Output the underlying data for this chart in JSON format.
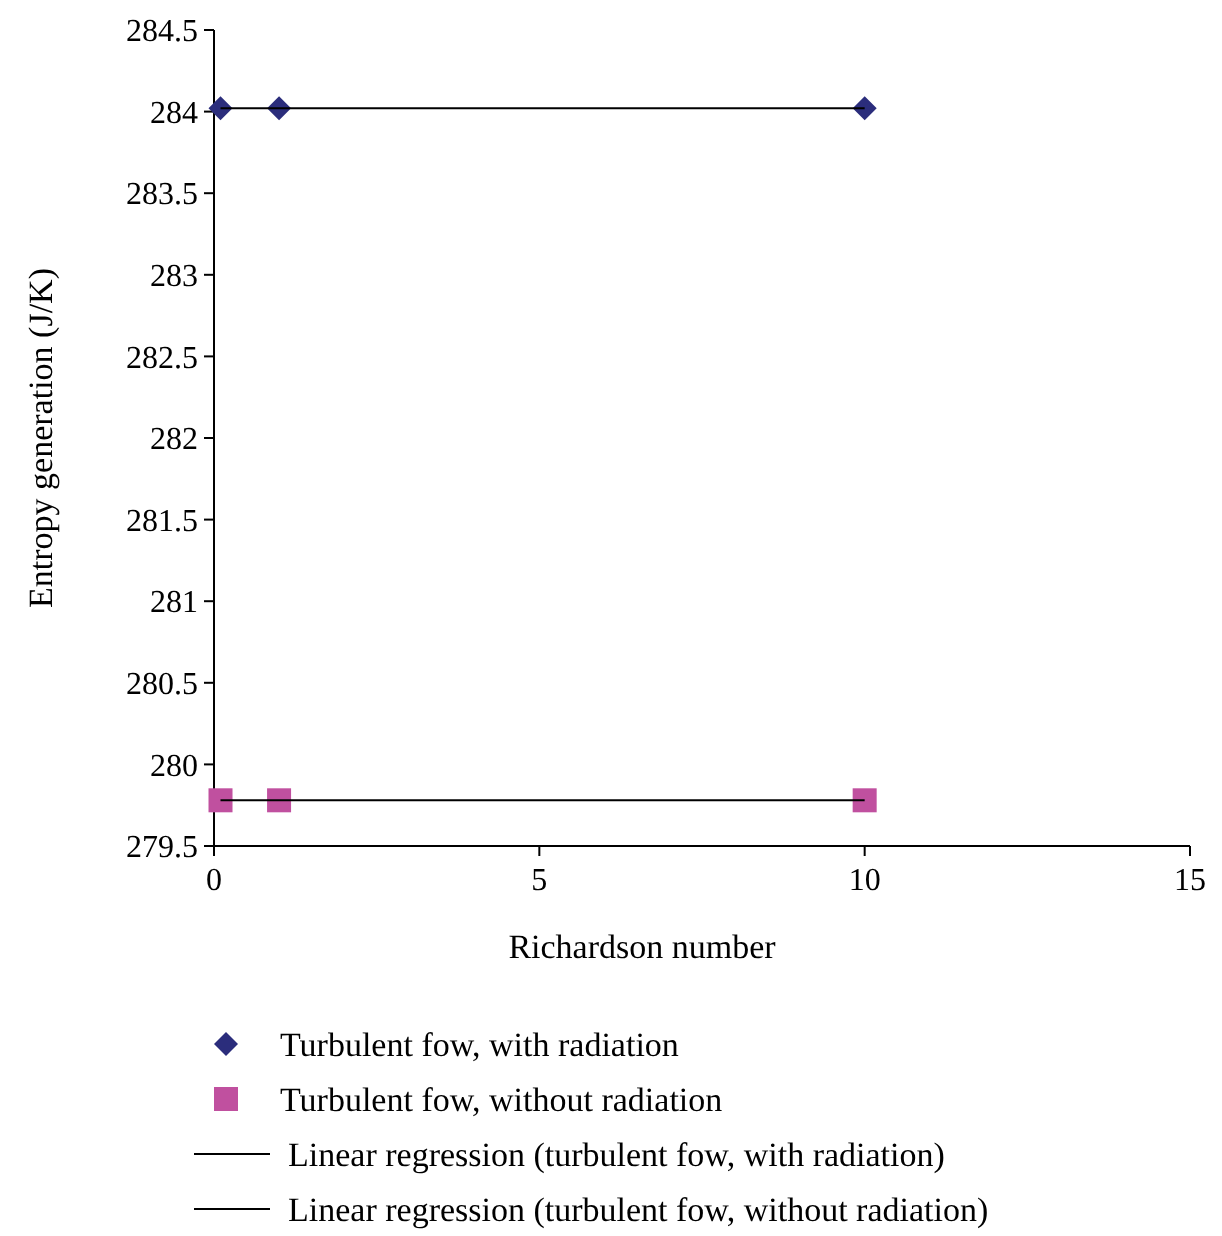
{
  "chart_data": {
    "type": "scatter",
    "xlabel": "Richardson number",
    "ylabel": "Entropy generation (J/K)",
    "x": [
      0.1,
      1,
      10
    ],
    "series": [
      {
        "name": "Turbulent fow, with radiation",
        "color": "#2b2d7c",
        "values": [
          284.02,
          284.02,
          284.02
        ],
        "marker": "diamond"
      },
      {
        "name": "Turbulent fow, without radiation",
        "color": "#c0509f",
        "values": [
          279.78,
          279.78,
          279.78
        ],
        "marker": "square"
      },
      {
        "name": "Linear regression  (turbulent fow, with radiation)",
        "type": "line",
        "color": "#000000",
        "values": [
          284.02,
          284.02,
          284.02
        ],
        "marker": "none"
      },
      {
        "name": "Linear regression  (turbulent fow, without radiation)",
        "type": "line",
        "color": "#000000",
        "values": [
          279.78,
          279.78,
          279.78
        ],
        "marker": "none"
      }
    ],
    "xlim": [
      0,
      15
    ],
    "xticks": [
      0,
      5,
      10,
      15
    ],
    "ylim": [
      279.5,
      284.5
    ],
    "yticks": [
      279.5,
      280,
      280.5,
      281,
      281.5,
      282,
      282.5,
      283,
      283.5,
      284,
      284.5
    ],
    "grid": false,
    "legend": "bottom"
  }
}
